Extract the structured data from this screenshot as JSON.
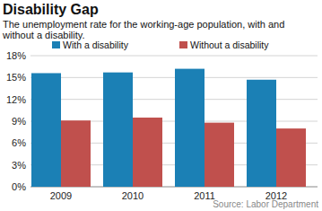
{
  "chart_data": {
    "type": "bar",
    "title": "Disability Gap",
    "subtitle": "The unemployment rate for the working-age population, with and without a disability.",
    "categories": [
      "2009",
      "2010",
      "2011",
      "2012"
    ],
    "series": [
      {
        "name": "With a disability",
        "color": "#1b80b5",
        "values": [
          15.6,
          15.7,
          16.2,
          14.7
        ]
      },
      {
        "name": "Without a disability",
        "color": "#c0504d",
        "values": [
          9.1,
          9.5,
          8.8,
          8.0
        ]
      }
    ],
    "ylim": [
      0,
      18
    ],
    "yticks": [
      {
        "value": 0,
        "label": "0%"
      },
      {
        "value": 3,
        "label": "3%"
      },
      {
        "value": 6,
        "label": "6%"
      },
      {
        "value": 9,
        "label": "9%"
      },
      {
        "value": 12,
        "label": "12%"
      },
      {
        "value": 15,
        "label": "15%"
      },
      {
        "value": 18,
        "label": "18%"
      }
    ],
    "grid": true,
    "legend": "top",
    "source": "Source: Labor Department"
  }
}
